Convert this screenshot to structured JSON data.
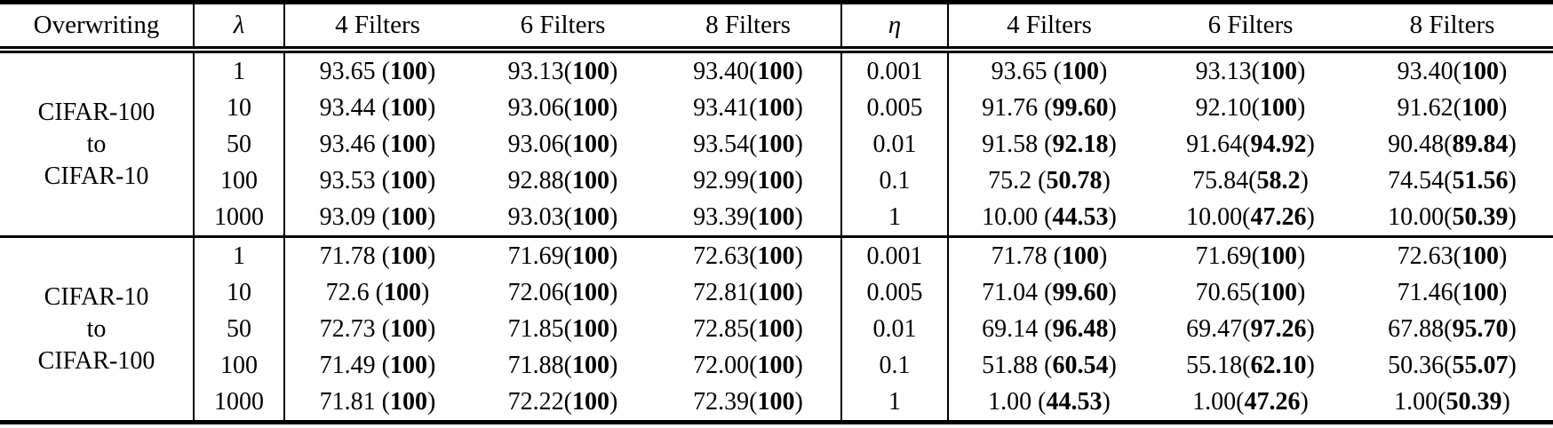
{
  "table": {
    "header": {
      "overwriting": "Overwriting",
      "lambda": "λ",
      "eta": "η",
      "filters_left": [
        "4 Filters",
        "6 Filters",
        "8 Filters"
      ],
      "filters_right": [
        "4 Filters",
        "6 Filters",
        "8 Filters"
      ]
    },
    "blocks": [
      {
        "label_lines": [
          "CIFAR-100",
          "to",
          "CIFAR-10"
        ],
        "rows": [
          {
            "lambda": "1",
            "eta": "0.001",
            "left": [
              {
                "pre": "93.65 (",
                "bold": "100",
                "post": ")"
              },
              {
                "pre": "93.13(",
                "bold": "100",
                "post": ")"
              },
              {
                "pre": "93.40(",
                "bold": "100",
                "post": ")"
              }
            ],
            "right": [
              {
                "pre": "93.65 (",
                "bold": "100",
                "post": ")"
              },
              {
                "pre": "93.13(",
                "bold": "100",
                "post": ")"
              },
              {
                "pre": "93.40(",
                "bold": "100",
                "post": ")"
              }
            ]
          },
          {
            "lambda": "10",
            "eta": "0.005",
            "left": [
              {
                "pre": "93.44 (",
                "bold": "100",
                "post": ")"
              },
              {
                "pre": "93.06(",
                "bold": "100",
                "post": ")"
              },
              {
                "pre": "93.41(",
                "bold": "100",
                "post": ")"
              }
            ],
            "right": [
              {
                "pre": "91.76 (",
                "bold": "99.60",
                "post": ")"
              },
              {
                "pre": "92.10(",
                "bold": "100",
                "post": ")"
              },
              {
                "pre": "91.62(",
                "bold": "100",
                "post": ")"
              }
            ]
          },
          {
            "lambda": "50",
            "eta": "0.01",
            "left": [
              {
                "pre": "93.46 (",
                "bold": "100",
                "post": ")"
              },
              {
                "pre": "93.06(",
                "bold": "100",
                "post": ")"
              },
              {
                "pre": "93.54(",
                "bold": "100",
                "post": ")"
              }
            ],
            "right": [
              {
                "pre": "91.58 (",
                "bold": "92.18",
                "post": ")"
              },
              {
                "pre": "91.64(",
                "bold": "94.92",
                "post": ")"
              },
              {
                "pre": "90.48(",
                "bold": "89.84",
                "post": ")"
              }
            ]
          },
          {
            "lambda": "100",
            "eta": "0.1",
            "left": [
              {
                "pre": "93.53 (",
                "bold": "100",
                "post": ")"
              },
              {
                "pre": "92.88(",
                "bold": "100",
                "post": ")"
              },
              {
                "pre": "92.99(",
                "bold": "100",
                "post": ")"
              }
            ],
            "right": [
              {
                "pre": "75.2 (",
                "bold": "50.78",
                "post": ")"
              },
              {
                "pre": "75.84(",
                "bold": "58.2",
                "post": ")"
              },
              {
                "pre": "74.54(",
                "bold": "51.56",
                "post": ")"
              }
            ]
          },
          {
            "lambda": "1000",
            "eta": "1",
            "left": [
              {
                "pre": "93.09 (",
                "bold": "100",
                "post": ")"
              },
              {
                "pre": "93.03(",
                "bold": "100",
                "post": ")"
              },
              {
                "pre": "93.39(",
                "bold": "100",
                "post": ")"
              }
            ],
            "right": [
              {
                "pre": "10.00 (",
                "bold": "44.53",
                "post": ")"
              },
              {
                "pre": "10.00(",
                "bold": "47.26",
                "post": ")"
              },
              {
                "pre": "10.00(",
                "bold": "50.39",
                "post": ")"
              }
            ]
          }
        ]
      },
      {
        "label_lines": [
          "CIFAR-10",
          "to",
          "CIFAR-100"
        ],
        "rows": [
          {
            "lambda": "1",
            "eta": "0.001",
            "left": [
              {
                "pre": "71.78 (",
                "bold": "100",
                "post": ")"
              },
              {
                "pre": "71.69(",
                "bold": "100",
                "post": ")"
              },
              {
                "pre": "72.63(",
                "bold": "100",
                "post": ")"
              }
            ],
            "right": [
              {
                "pre": "71.78 (",
                "bold": "100",
                "post": ")"
              },
              {
                "pre": "71.69(",
                "bold": "100",
                "post": ")"
              },
              {
                "pre": "72.63(",
                "bold": "100",
                "post": ")"
              }
            ]
          },
          {
            "lambda": "10",
            "eta": "0.005",
            "left": [
              {
                "pre": "72.6 (",
                "bold": "100",
                "post": ")"
              },
              {
                "pre": "72.06(",
                "bold": "100",
                "post": ")"
              },
              {
                "pre": "72.81(",
                "bold": "100",
                "post": ")"
              }
            ],
            "right": [
              {
                "pre": "71.04 (",
                "bold": "99.60",
                "post": ")"
              },
              {
                "pre": "70.65(",
                "bold": "100",
                "post": ")"
              },
              {
                "pre": "71.46(",
                "bold": "100",
                "post": ")"
              }
            ]
          },
          {
            "lambda": "50",
            "eta": "0.01",
            "left": [
              {
                "pre": "72.73 (",
                "bold": "100",
                "post": ")"
              },
              {
                "pre": "71.85(",
                "bold": "100",
                "post": ")"
              },
              {
                "pre": "72.85(",
                "bold": "100",
                "post": ")"
              }
            ],
            "right": [
              {
                "pre": "69.14 (",
                "bold": "96.48",
                "post": ")"
              },
              {
                "pre": "69.47(",
                "bold": "97.26",
                "post": ")"
              },
              {
                "pre": "67.88(",
                "bold": "95.70",
                "post": ")"
              }
            ]
          },
          {
            "lambda": "100",
            "eta": "0.1",
            "left": [
              {
                "pre": "71.49 (",
                "bold": "100",
                "post": ")"
              },
              {
                "pre": "71.88(",
                "bold": "100",
                "post": ")"
              },
              {
                "pre": "72.00(",
                "bold": "100",
                "post": ")"
              }
            ],
            "right": [
              {
                "pre": "51.88 (",
                "bold": "60.54",
                "post": ")"
              },
              {
                "pre": "55.18(",
                "bold": "62.10",
                "post": ")"
              },
              {
                "pre": "50.36(",
                "bold": "55.07",
                "post": ")"
              }
            ]
          },
          {
            "lambda": "1000",
            "eta": "1",
            "left": [
              {
                "pre": "71.81 (",
                "bold": "100",
                "post": ")"
              },
              {
                "pre": "72.22(",
                "bold": "100",
                "post": ")"
              },
              {
                "pre": "72.39(",
                "bold": "100",
                "post": ")"
              }
            ],
            "right": [
              {
                "pre": "1.00 (",
                "bold": "44.53",
                "post": ")"
              },
              {
                "pre": "1.00(",
                "bold": "47.26",
                "post": ")"
              },
              {
                "pre": "1.00(",
                "bold": "50.39",
                "post": ")"
              }
            ]
          }
        ]
      }
    ]
  }
}
